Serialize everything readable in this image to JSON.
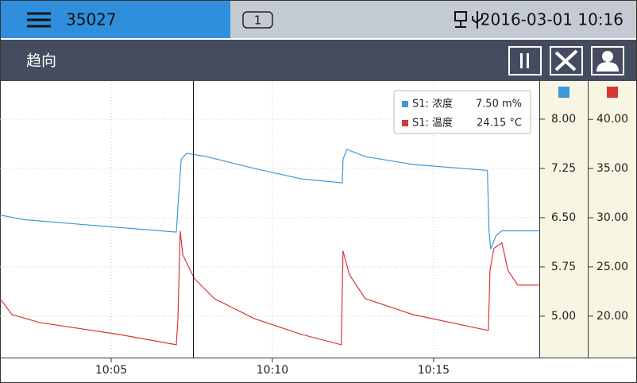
{
  "header": {
    "device_id": "35027",
    "badge": "1",
    "datetime": "2016-03-01 10:16"
  },
  "toolbar": {
    "title": "趋向"
  },
  "chart_data": {
    "type": "line",
    "xlim": [
      601.55,
      618.28
    ],
    "xticks": [
      {
        "value": 605,
        "label": "10:05"
      },
      {
        "value": 610,
        "label": "10:10"
      },
      {
        "value": 615,
        "label": "10:15"
      }
    ],
    "ylim": [
      4.37,
      8.58
    ],
    "yticks": [
      {
        "value": 8,
        "label": "8.00"
      },
      7.25,
      {
        "value": 6.5,
        "label": "6.50"
      },
      5.75,
      {
        "value": 5,
        "label": "5.00"
      }
    ],
    "y2lim": [
      15.79,
      43.89
    ],
    "y2ticks": [
      {
        "value": 40,
        "label": "40.00"
      },
      {
        "value": 35,
        "label": "35.00"
      },
      {
        "value": 30,
        "label": "30.00"
      },
      {
        "value": 25,
        "label": "25.00"
      },
      {
        "value": 20,
        "label": "20.00"
      }
    ],
    "grid": true,
    "series": [
      {
        "name": "S1: 浓度",
        "readout": "7.50 m%",
        "color": "#3a9ad9",
        "x": [
          601.55,
          602.29,
          604.01,
          607.02,
          607.07,
          607.17,
          607.34,
          607.95,
          609.43,
          610.91,
          612.17,
          612.19,
          612.31,
          612.88,
          614.36,
          616.67,
          616.72,
          616.77,
          616.94,
          617.12,
          618.27
        ],
        "values": [
          6.54,
          6.47,
          6.4,
          6.28,
          6.66,
          7.39,
          7.48,
          7.43,
          7.25,
          7.09,
          7.03,
          7.39,
          7.54,
          7.43,
          7.31,
          7.22,
          6.3,
          6.02,
          6.23,
          6.3,
          6.3
        ]
      },
      {
        "name": "S1: 温度",
        "readout": "24.15 °C",
        "color": "#d93636",
        "axis": "y2",
        "x": [
          601.55,
          601.92,
          602.78,
          605.24,
          607.02,
          607.07,
          607.14,
          607.22,
          607.58,
          608.2,
          609.43,
          610.91,
          612.14,
          612.19,
          612.39,
          612.88,
          614.36,
          616.7,
          616.75,
          616.87,
          617.12,
          617.31,
          617.61,
          618.27
        ],
        "values": [
          21.78,
          20.16,
          19.35,
          18.14,
          17.09,
          19.76,
          28.66,
          26.24,
          23.81,
          21.78,
          19.76,
          18.14,
          17.09,
          26.64,
          24.21,
          21.78,
          20.16,
          18.54,
          24.62,
          26.88,
          27.45,
          24.62,
          23.16,
          23.16
        ]
      }
    ]
  }
}
